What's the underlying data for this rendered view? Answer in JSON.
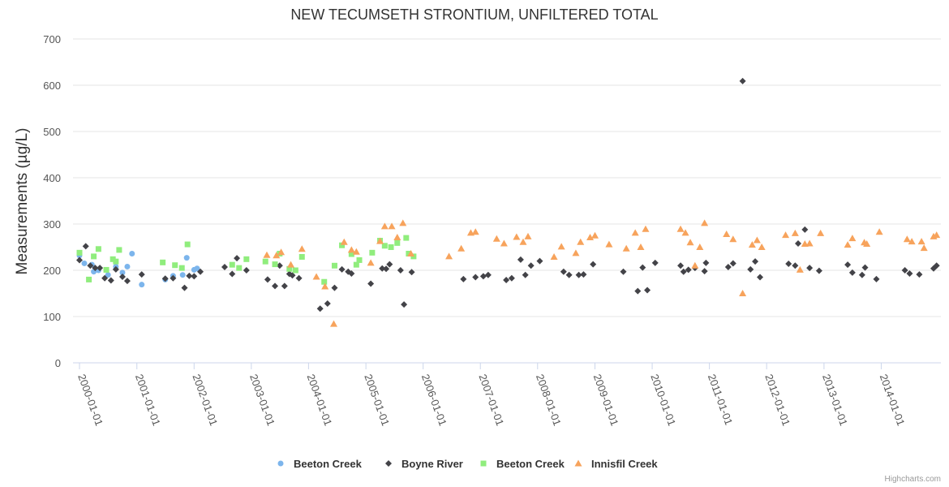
{
  "chart_data": {
    "type": "scatter",
    "title": "NEW TECUMSETH STRONTIUM, UNFILTERED TOTAL",
    "ylabel": "Measurements (µg/L)",
    "xlabel": "",
    "ylim": [
      0,
      700
    ],
    "yticks": [
      0,
      100,
      200,
      300,
      400,
      500,
      600,
      700
    ],
    "xlim": [
      "2000-01-01",
      "2015-01-01"
    ],
    "xticks": [
      "2000-01-01",
      "2001-01-01",
      "2002-01-01",
      "2003-01-01",
      "2004-01-01",
      "2005-01-01",
      "2006-01-01",
      "2007-01-01",
      "2008-01-01",
      "2009-01-01",
      "2010-01-01",
      "2011-01-01",
      "2012-01-01",
      "2013-01-01",
      "2014-01-01"
    ],
    "grid": true,
    "legend": "bottom-center",
    "series": [
      {
        "name": "Beeton Creek",
        "color": "#7cb5ec",
        "marker": "circle",
        "points": [
          [
            "2000-01-01",
            232
          ],
          [
            "2000-02-01",
            215
          ],
          [
            "2000-03-20",
            212
          ],
          [
            "2000-04-01",
            197
          ],
          [
            "2000-05-01",
            200
          ],
          [
            "2000-07-01",
            190
          ],
          [
            "2000-08-20",
            208
          ],
          [
            "2000-10-01",
            195
          ],
          [
            "2000-11-01",
            208
          ],
          [
            "2000-12-01",
            236
          ],
          [
            "2001-02-01",
            169
          ],
          [
            "2001-07-01",
            180
          ],
          [
            "2001-08-20",
            188
          ],
          [
            "2001-10-20",
            190
          ],
          [
            "2001-11-15",
            227
          ],
          [
            "2002-01-01",
            201
          ],
          [
            "2002-01-20",
            204
          ]
        ]
      },
      {
        "name": "Boyne River",
        "color": "#434348",
        "marker": "diamond",
        "points": [
          [
            "2000-01-01",
            222
          ],
          [
            "2000-02-10",
            252
          ],
          [
            "2000-03-10",
            210
          ],
          [
            "2000-04-10",
            205
          ],
          [
            "2000-05-10",
            205
          ],
          [
            "2000-06-10",
            183
          ],
          [
            "2000-07-20",
            178
          ],
          [
            "2000-08-20",
            202
          ],
          [
            "2000-10-01",
            186
          ],
          [
            "2000-11-01",
            177
          ],
          [
            "2001-02-01",
            191
          ],
          [
            "2001-07-01",
            182
          ],
          [
            "2001-08-20",
            183
          ],
          [
            "2001-11-01",
            162
          ],
          [
            "2001-12-01",
            188
          ],
          [
            "2002-01-01",
            187
          ],
          [
            "2002-02-10",
            197
          ],
          [
            "2002-07-15",
            207
          ],
          [
            "2002-09-01",
            192
          ],
          [
            "2002-10-01",
            226
          ],
          [
            "2002-12-01",
            200
          ],
          [
            "2003-04-15",
            180
          ],
          [
            "2003-06-01",
            166
          ],
          [
            "2003-07-01",
            210
          ],
          [
            "2003-08-01",
            166
          ],
          [
            "2003-09-01",
            192
          ],
          [
            "2003-09-20",
            189
          ],
          [
            "2003-11-01",
            183
          ],
          [
            "2004-03-15",
            117
          ],
          [
            "2004-05-01",
            128
          ],
          [
            "2004-06-15",
            162
          ],
          [
            "2004-08-01",
            202
          ],
          [
            "2004-09-10",
            197
          ],
          [
            "2004-10-01",
            193
          ],
          [
            "2005-02-01",
            171
          ],
          [
            "2005-04-15",
            204
          ],
          [
            "2005-05-10",
            203
          ],
          [
            "2005-06-01",
            213
          ],
          [
            "2005-08-10",
            200
          ],
          [
            "2005-09-01",
            126
          ],
          [
            "2005-10-20",
            196
          ],
          [
            "2006-09-15",
            181
          ],
          [
            "2006-12-01",
            185
          ],
          [
            "2007-01-20",
            187
          ],
          [
            "2007-02-20",
            190
          ],
          [
            "2007-06-15",
            179
          ],
          [
            "2007-07-20",
            183
          ],
          [
            "2007-09-15",
            223
          ],
          [
            "2007-10-15",
            190
          ],
          [
            "2007-11-20",
            210
          ],
          [
            "2008-01-15",
            220
          ],
          [
            "2008-06-15",
            197
          ],
          [
            "2008-07-20",
            190
          ],
          [
            "2008-09-20",
            190
          ],
          [
            "2008-10-20",
            191
          ],
          [
            "2008-12-20",
            213
          ],
          [
            "2009-07-01",
            197
          ],
          [
            "2009-10-01",
            155
          ],
          [
            "2009-11-01",
            206
          ],
          [
            "2009-12-01",
            157
          ],
          [
            "2010-01-20",
            216
          ],
          [
            "2010-07-01",
            210
          ],
          [
            "2010-07-20",
            197
          ],
          [
            "2010-08-20",
            201
          ],
          [
            "2010-10-01",
            205
          ],
          [
            "2010-12-01",
            198
          ],
          [
            "2010-12-10",
            216
          ],
          [
            "2011-05-01",
            207
          ],
          [
            "2011-06-01",
            215
          ],
          [
            "2011-08-01",
            609
          ],
          [
            "2011-09-20",
            202
          ],
          [
            "2011-10-20",
            219
          ],
          [
            "2011-11-20",
            185
          ],
          [
            "2012-05-20",
            214
          ],
          [
            "2012-07-01",
            210
          ],
          [
            "2012-07-20",
            258
          ],
          [
            "2012-09-01",
            288
          ],
          [
            "2012-10-01",
            205
          ],
          [
            "2012-12-01",
            199
          ],
          [
            "2013-06-01",
            212
          ],
          [
            "2013-07-01",
            195
          ],
          [
            "2013-09-01",
            190
          ],
          [
            "2013-09-20",
            206
          ],
          [
            "2013-12-01",
            181
          ],
          [
            "2014-06-01",
            200
          ],
          [
            "2014-07-01",
            193
          ],
          [
            "2014-09-01",
            191
          ],
          [
            "2014-12-01",
            204
          ],
          [
            "2014-12-20",
            210
          ]
        ]
      },
      {
        "name": "Beeton Creek",
        "color": "#90ed7d",
        "marker": "square",
        "points": [
          [
            "2000-01-01",
            238
          ],
          [
            "2000-03-01",
            180
          ],
          [
            "2000-04-01",
            230
          ],
          [
            "2000-05-01",
            246
          ],
          [
            "2000-06-20",
            201
          ],
          [
            "2000-08-01",
            224
          ],
          [
            "2000-08-20",
            219
          ],
          [
            "2000-09-10",
            244
          ],
          [
            "2001-06-15",
            217
          ],
          [
            "2001-09-01",
            211
          ],
          [
            "2001-10-15",
            205
          ],
          [
            "2001-11-20",
            256
          ],
          [
            "2002-09-01",
            212
          ],
          [
            "2002-10-15",
            205
          ],
          [
            "2002-12-01",
            224
          ],
          [
            "2003-04-01",
            219
          ],
          [
            "2003-06-01",
            213
          ],
          [
            "2003-07-01",
            236
          ],
          [
            "2003-09-01",
            203
          ],
          [
            "2003-10-10",
            200
          ],
          [
            "2003-11-20",
            229
          ],
          [
            "2004-04-10",
            175
          ],
          [
            "2004-06-15",
            210
          ],
          [
            "2004-08-01",
            254
          ],
          [
            "2004-10-01",
            235
          ],
          [
            "2004-11-01",
            212
          ],
          [
            "2004-11-20",
            222
          ],
          [
            "2005-02-10",
            238
          ],
          [
            "2005-04-01",
            264
          ],
          [
            "2005-05-01",
            253
          ],
          [
            "2005-06-10",
            250
          ],
          [
            "2005-07-20",
            259
          ],
          [
            "2005-09-15",
            270
          ],
          [
            "2005-10-01",
            236
          ],
          [
            "2005-11-01",
            230
          ]
        ]
      },
      {
        "name": "Innisfil Creek",
        "color": "#f7a35c",
        "marker": "triangle",
        "points": [
          [
            "2003-04-10",
            233
          ],
          [
            "2003-06-10",
            232
          ],
          [
            "2003-07-10",
            239
          ],
          [
            "2003-09-10",
            212
          ],
          [
            "2003-11-20",
            246
          ],
          [
            "2004-02-20",
            186
          ],
          [
            "2004-04-15",
            165
          ],
          [
            "2004-06-10",
            84
          ],
          [
            "2004-08-15",
            261
          ],
          [
            "2004-10-01",
            244
          ],
          [
            "2004-11-01",
            240
          ],
          [
            "2005-02-01",
            216
          ],
          [
            "2005-04-01",
            263
          ],
          [
            "2005-05-01",
            295
          ],
          [
            "2005-06-15",
            295
          ],
          [
            "2005-07-20",
            271
          ],
          [
            "2005-08-25",
            302
          ],
          [
            "2005-10-15",
            236
          ],
          [
            "2006-06-15",
            230
          ],
          [
            "2006-09-01",
            247
          ],
          [
            "2006-11-01",
            281
          ],
          [
            "2006-12-01",
            283
          ],
          [
            "2007-04-15",
            268
          ],
          [
            "2007-06-01",
            258
          ],
          [
            "2007-08-20",
            272
          ],
          [
            "2007-10-01",
            261
          ],
          [
            "2007-11-01",
            273
          ],
          [
            "2008-04-15",
            229
          ],
          [
            "2008-06-01",
            251
          ],
          [
            "2008-09-01",
            237
          ],
          [
            "2008-10-01",
            261
          ],
          [
            "2008-12-01",
            271
          ],
          [
            "2009-01-01",
            275
          ],
          [
            "2009-04-01",
            256
          ],
          [
            "2009-07-20",
            247
          ],
          [
            "2009-09-15",
            281
          ],
          [
            "2009-10-20",
            250
          ],
          [
            "2009-11-20",
            289
          ],
          [
            "2010-07-01",
            289
          ],
          [
            "2010-08-01",
            281
          ],
          [
            "2010-09-01",
            260
          ],
          [
            "2010-10-01",
            210
          ],
          [
            "2010-11-01",
            250
          ],
          [
            "2010-12-01",
            302
          ],
          [
            "2011-04-20",
            278
          ],
          [
            "2011-06-01",
            267
          ],
          [
            "2011-08-01",
            150
          ],
          [
            "2011-10-01",
            255
          ],
          [
            "2011-11-01",
            265
          ],
          [
            "2011-12-01",
            250
          ],
          [
            "2012-05-01",
            276
          ],
          [
            "2012-07-01",
            280
          ],
          [
            "2012-08-01",
            201
          ],
          [
            "2012-09-01",
            257
          ],
          [
            "2012-10-01",
            258
          ],
          [
            "2012-12-10",
            280
          ],
          [
            "2013-06-01",
            255
          ],
          [
            "2013-07-01",
            269
          ],
          [
            "2013-09-15",
            260
          ],
          [
            "2013-10-01",
            257
          ],
          [
            "2013-12-20",
            283
          ],
          [
            "2014-06-15",
            267
          ],
          [
            "2014-07-15",
            262
          ],
          [
            "2014-09-15",
            262
          ],
          [
            "2014-10-01",
            248
          ],
          [
            "2014-12-01",
            273
          ],
          [
            "2014-12-20",
            276
          ]
        ]
      }
    ]
  },
  "credits": "Highcharts.com"
}
